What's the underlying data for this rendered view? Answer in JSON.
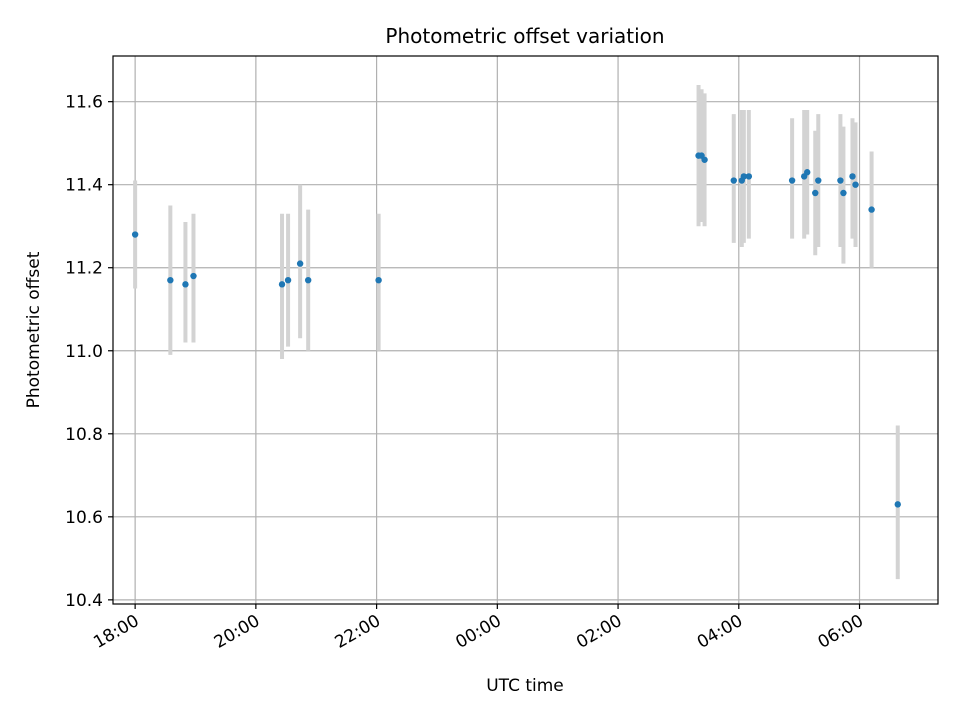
{
  "chart_data": {
    "type": "scatter",
    "title": "Photometric offset variation",
    "xlabel": "UTC time",
    "ylabel": "Photometric offset",
    "x_axis_kind": "time",
    "xlim": [
      "2024-01-01T17:38",
      "2024-01-02T07:18"
    ],
    "ylim": [
      10.39,
      11.71
    ],
    "grid": true,
    "x_ticks": [
      {
        "t": "2024-01-01T18:00",
        "label": "18:00"
      },
      {
        "t": "2024-01-01T20:00",
        "label": "20:00"
      },
      {
        "t": "2024-01-01T22:00",
        "label": "22:00"
      },
      {
        "t": "2024-01-02T00:00",
        "label": "00:00"
      },
      {
        "t": "2024-01-02T02:00",
        "label": "02:00"
      },
      {
        "t": "2024-01-02T04:00",
        "label": "04:00"
      },
      {
        "t": "2024-01-02T06:00",
        "label": "06:00"
      }
    ],
    "y_ticks": [
      {
        "v": 10.4,
        "label": "10.4"
      },
      {
        "v": 10.6,
        "label": "10.6"
      },
      {
        "v": 10.8,
        "label": "10.8"
      },
      {
        "v": 11.0,
        "label": "11.0"
      },
      {
        "v": 11.2,
        "label": "11.2"
      },
      {
        "v": 11.4,
        "label": "11.4"
      },
      {
        "v": 11.6,
        "label": "11.6"
      }
    ],
    "marker_color": "#1f77b4",
    "errorbar_color": "#d3d3d3",
    "points": [
      {
        "t": "2024-01-01T18:00",
        "y": 11.28,
        "lo": 11.15,
        "hi": 11.41
      },
      {
        "t": "2024-01-01T18:35",
        "y": 11.17,
        "lo": 10.99,
        "hi": 11.35
      },
      {
        "t": "2024-01-01T18:50",
        "y": 11.16,
        "lo": 11.02,
        "hi": 11.31
      },
      {
        "t": "2024-01-01T18:58",
        "y": 11.18,
        "lo": 11.02,
        "hi": 11.33
      },
      {
        "t": "2024-01-01T20:26",
        "y": 11.16,
        "lo": 10.98,
        "hi": 11.33
      },
      {
        "t": "2024-01-01T20:32",
        "y": 11.17,
        "lo": 11.01,
        "hi": 11.33
      },
      {
        "t": "2024-01-01T20:44",
        "y": 11.21,
        "lo": 11.03,
        "hi": 11.4
      },
      {
        "t": "2024-01-01T20:52",
        "y": 11.17,
        "lo": 11.0,
        "hi": 11.34
      },
      {
        "t": "2024-01-01T22:02",
        "y": 11.17,
        "lo": 11.0,
        "hi": 11.33
      },
      {
        "t": "2024-01-02T03:20",
        "y": 11.47,
        "lo": 11.3,
        "hi": 11.64
      },
      {
        "t": "2024-01-02T03:23",
        "y": 11.47,
        "lo": 11.31,
        "hi": 11.63
      },
      {
        "t": "2024-01-02T03:26",
        "y": 11.46,
        "lo": 11.3,
        "hi": 11.62
      },
      {
        "t": "2024-01-02T03:55",
        "y": 11.41,
        "lo": 11.26,
        "hi": 11.57
      },
      {
        "t": "2024-01-02T04:03",
        "y": 11.41,
        "lo": 11.25,
        "hi": 11.58
      },
      {
        "t": "2024-01-02T04:05",
        "y": 11.42,
        "lo": 11.26,
        "hi": 11.58
      },
      {
        "t": "2024-01-02T04:10",
        "y": 11.42,
        "lo": 11.27,
        "hi": 11.58
      },
      {
        "t": "2024-01-02T04:53",
        "y": 11.41,
        "lo": 11.27,
        "hi": 11.56
      },
      {
        "t": "2024-01-02T05:05",
        "y": 11.42,
        "lo": 11.27,
        "hi": 11.58
      },
      {
        "t": "2024-01-02T05:08",
        "y": 11.43,
        "lo": 11.28,
        "hi": 11.58
      },
      {
        "t": "2024-01-02T05:16",
        "y": 11.38,
        "lo": 11.23,
        "hi": 11.53
      },
      {
        "t": "2024-01-02T05:19",
        "y": 11.41,
        "lo": 11.25,
        "hi": 11.57
      },
      {
        "t": "2024-01-02T05:41",
        "y": 11.41,
        "lo": 11.25,
        "hi": 11.57
      },
      {
        "t": "2024-01-02T05:44",
        "y": 11.38,
        "lo": 11.21,
        "hi": 11.54
      },
      {
        "t": "2024-01-02T05:53",
        "y": 11.42,
        "lo": 11.27,
        "hi": 11.56
      },
      {
        "t": "2024-01-02T05:56",
        "y": 11.4,
        "lo": 11.25,
        "hi": 11.55
      },
      {
        "t": "2024-01-02T06:12",
        "y": 11.34,
        "lo": 11.2,
        "hi": 11.48
      },
      {
        "t": "2024-01-02T06:38",
        "y": 10.63,
        "lo": 10.45,
        "hi": 10.82
      }
    ]
  }
}
